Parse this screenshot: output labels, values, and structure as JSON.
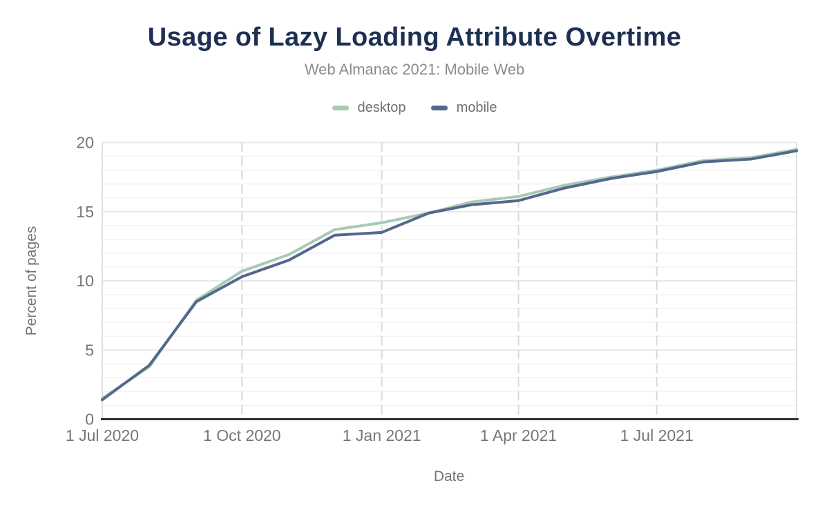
{
  "header": {
    "title": "Usage of Lazy Loading Attribute Overtime",
    "subtitle": "Web Almanac 2021: Mobile Web"
  },
  "colors": {
    "title_text": "#1d2f52",
    "subtitle_text": "#8b8b8b",
    "axis_text": "#757575",
    "desktop_series": "#a7cab5",
    "mobile_series": "#54678c",
    "minor_gridline": "#f3f3f3",
    "major_gridline": "#e8e8e8",
    "vertical_gridline": "#d9d9d9",
    "plot_border": "#e0e0e0",
    "x_axis_line": "#303030"
  },
  "chart_data": {
    "type": "line",
    "title": "Usage of Lazy Loading Attribute Overtime",
    "subtitle": "Web Almanac 2021: Mobile Web",
    "xlabel": "Date",
    "ylabel": "Percent of pages",
    "ylim": [
      0,
      20
    ],
    "y_major_ticks": [
      0,
      5,
      10,
      15,
      20
    ],
    "y_minor_step": 1,
    "x_range_days": [
      0,
      457
    ],
    "x_ticks": [
      {
        "label": "1 Jul 2020",
        "day": 0
      },
      {
        "label": "1 Oct 2020",
        "day": 92
      },
      {
        "label": "1 Jan 2021",
        "day": 184
      },
      {
        "label": "1 Apr 2021",
        "day": 274
      },
      {
        "label": "1 Jul 2021",
        "day": 365
      }
    ],
    "point_dates": [
      "1 Jul 2020",
      "1 Aug 2020",
      "1 Sep 2020",
      "1 Oct 2020",
      "1 Nov 2020",
      "1 Dec 2020",
      "1 Jan 2021",
      "1 Feb 2021",
      "1 Mar 2021",
      "1 Apr 2021",
      "1 May 2021",
      "1 Jun 2021",
      "1 Jul 2021",
      "1 Aug 2021",
      "1 Sep 2021",
      "1 Oct 2021"
    ],
    "point_days": [
      0,
      31,
      62,
      92,
      123,
      153,
      184,
      215,
      243,
      274,
      304,
      335,
      365,
      396,
      427,
      457
    ],
    "series": [
      {
        "name": "desktop",
        "color": "#a7cab5",
        "values": [
          1.5,
          3.8,
          8.6,
          10.7,
          11.9,
          13.7,
          14.2,
          14.9,
          15.7,
          16.1,
          16.9,
          17.5,
          18.0,
          18.7,
          18.9,
          19.5
        ]
      },
      {
        "name": "mobile",
        "color": "#54678c",
        "values": [
          1.4,
          3.9,
          8.5,
          10.3,
          11.5,
          13.3,
          13.5,
          14.9,
          15.5,
          15.8,
          16.7,
          17.4,
          17.9,
          18.6,
          18.8,
          19.4
        ]
      }
    ],
    "legend_position": "top",
    "grid": {
      "horizontal_minor": true,
      "horizontal_major": true,
      "vertical_at_xticks": "dashed"
    }
  }
}
